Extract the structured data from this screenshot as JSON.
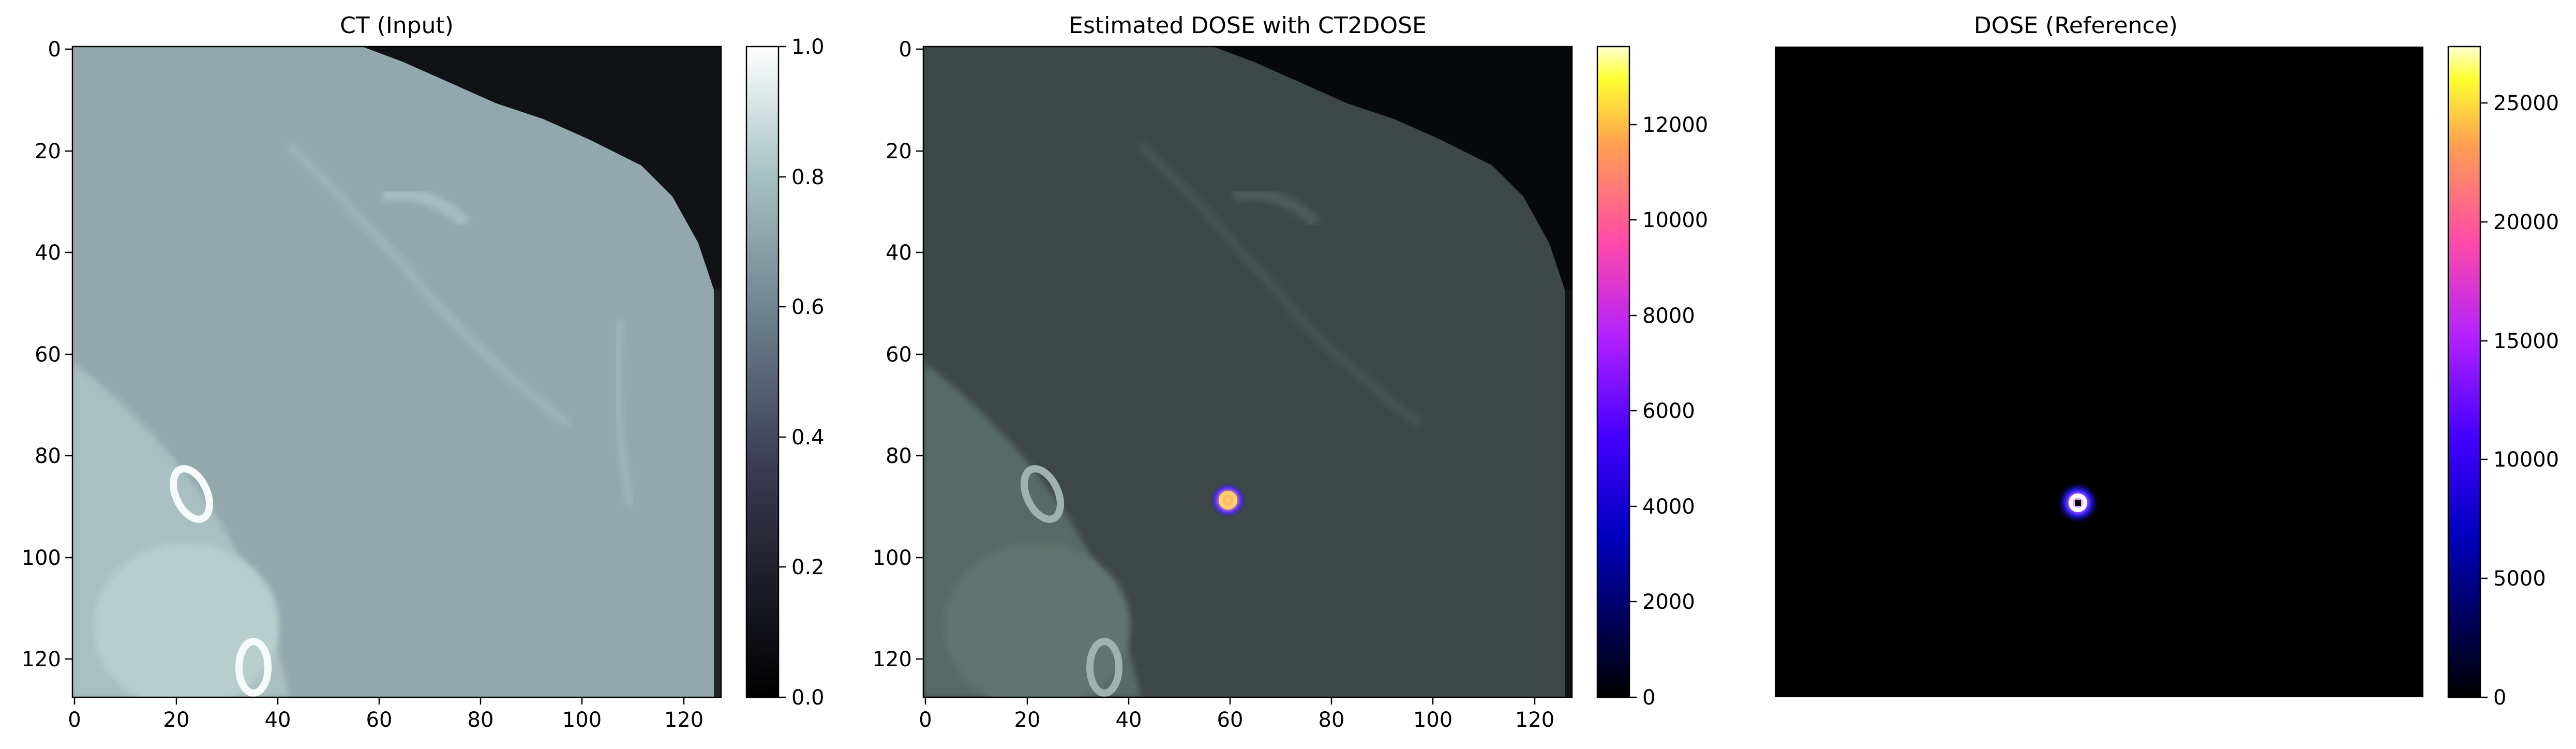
{
  "panels": [
    {
      "title": "CT (Input)",
      "x_ticks": [
        "0",
        "20",
        "40",
        "60",
        "80",
        "100",
        "120"
      ],
      "y_ticks": [
        "0",
        "20",
        "40",
        "60",
        "80",
        "100",
        "120"
      ],
      "colorbar_ticks": [
        "0.0",
        "0.2",
        "0.4",
        "0.6",
        "0.8",
        "1.0"
      ],
      "colormap": "bone"
    },
    {
      "title": "Estimated DOSE with CT2DOSE",
      "x_ticks": [
        "0",
        "20",
        "40",
        "60",
        "80",
        "100",
        "120"
      ],
      "y_ticks": [
        "0",
        "20",
        "40",
        "60",
        "80",
        "100",
        "120"
      ],
      "colorbar_ticks": [
        "0",
        "2000",
        "4000",
        "6000",
        "8000",
        "10000",
        "12000"
      ],
      "colormap": "gnuplot2"
    },
    {
      "title": "DOSE (Reference)",
      "colorbar_ticks": [
        "0",
        "5000",
        "10000",
        "15000",
        "20000",
        "25000"
      ],
      "colormap": "gnuplot2"
    }
  ]
}
